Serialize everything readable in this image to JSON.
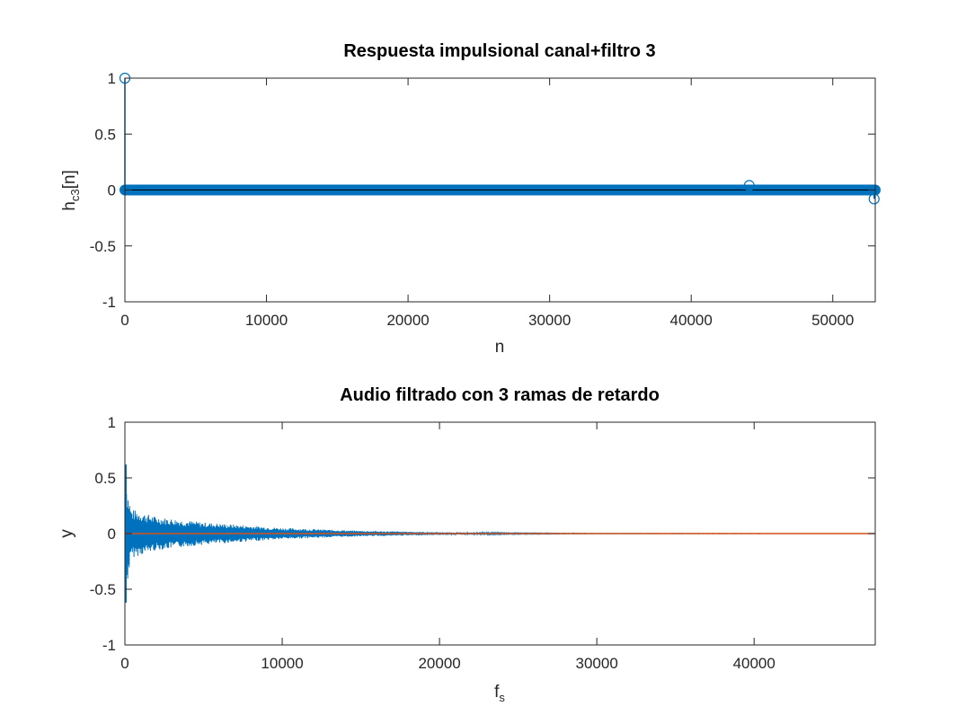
{
  "chart_data": [
    {
      "type": "stem",
      "title": "Respuesta impulsional canal+filtro 3",
      "xlabel": "n",
      "ylabel": {
        "base": "h",
        "sub": "c3",
        "suffix": "[n]"
      },
      "xlim": [
        0,
        53000
      ],
      "ylim": [
        -1,
        1
      ],
      "xticks": [
        0,
        10000,
        20000,
        30000,
        40000,
        50000
      ],
      "xtick_labels": [
        "0",
        "10000",
        "20000",
        "30000",
        "40000",
        "50000"
      ],
      "yticks": [
        -1,
        -0.5,
        0,
        0.5,
        1
      ],
      "ytick_labels": [
        "-1",
        "-0.5",
        "0",
        "0.5",
        "1"
      ],
      "grid": false,
      "color": "#0072bd",
      "baseline_range": [
        0,
        53000
      ],
      "stems": [
        {
          "n": 0,
          "value": 1
        },
        {
          "n": 44100,
          "value": 0.04
        },
        {
          "n": 52920,
          "value": -0.08
        }
      ]
    },
    {
      "type": "line",
      "title": "Audio filtrado con 3 ramas de retardo",
      "xlabel": {
        "base": "f",
        "sub": "s"
      },
      "ylabel": "y",
      "xlim": [
        0,
        47700
      ],
      "ylim": [
        -1,
        1
      ],
      "xticks": [
        0,
        10000,
        20000,
        30000,
        40000
      ],
      "xtick_labels": [
        "0",
        "10000",
        "20000",
        "30000",
        "40000"
      ],
      "yticks": [
        -1,
        -0.5,
        0,
        0.5,
        1
      ],
      "ytick_labels": [
        "-1",
        "-0.5",
        "0",
        "0.5",
        "1"
      ],
      "grid": false,
      "series": [
        {
          "color": "#0072bd",
          "envelope": [
            {
              "x": 0,
              "upper": 0.62,
              "lower": -0.62
            },
            {
              "x": 150,
              "upper": 0.4,
              "lower": -0.45
            },
            {
              "x": 400,
              "upper": 0.22,
              "lower": -0.22
            },
            {
              "x": 2000,
              "upper": 0.15,
              "lower": -0.15
            },
            {
              "x": 5000,
              "upper": 0.1,
              "lower": -0.1
            },
            {
              "x": 10000,
              "upper": 0.05,
              "lower": -0.05
            },
            {
              "x": 15000,
              "upper": 0.025,
              "lower": -0.025
            },
            {
              "x": 20000,
              "upper": 0.012,
              "lower": -0.012
            },
            {
              "x": 25000,
              "upper": 0.005,
              "lower": -0.005
            },
            {
              "x": 30000,
              "upper": 0.002,
              "lower": -0.002
            },
            {
              "x": 45000,
              "upper": 0.001,
              "lower": -0.001
            }
          ]
        },
        {
          "color": "#d95319",
          "points": [
            {
              "x": 0,
              "y": 0
            },
            {
              "x": 47700,
              "y": 0
            }
          ]
        }
      ]
    }
  ]
}
